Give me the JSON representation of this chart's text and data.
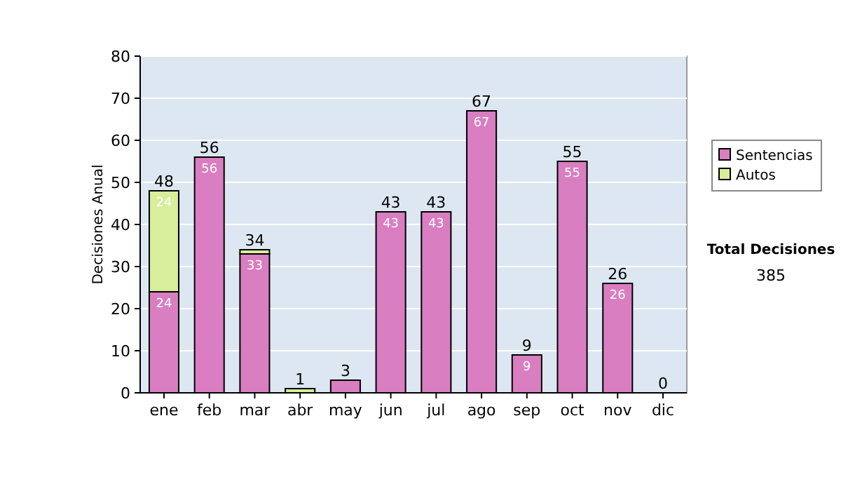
{
  "chart_data": {
    "type": "bar",
    "stacked": true,
    "ylabel": "Decisiones Anual",
    "categories": [
      "ene",
      "feb",
      "mar",
      "abr",
      "may",
      "jun",
      "jul",
      "ago",
      "sep",
      "oct",
      "nov",
      "dic"
    ],
    "series": [
      {
        "name": "Sentencias",
        "color": "#d97ec0",
        "values": [
          24,
          56,
          33,
          0,
          3,
          43,
          43,
          67,
          9,
          55,
          26,
          0
        ],
        "value_labels": [
          "24",
          "56",
          "33",
          null,
          null,
          "43",
          "43",
          "67",
          "9",
          "55",
          "26",
          null
        ]
      },
      {
        "name": "Autos",
        "color": "#d8ee9a",
        "values": [
          24,
          0,
          1,
          1,
          0,
          0,
          0,
          0,
          0,
          0,
          0,
          0
        ],
        "value_labels": [
          "24",
          null,
          null,
          null,
          null,
          null,
          null,
          null,
          null,
          null,
          null,
          null
        ]
      }
    ],
    "totals": [
      "48",
      "56",
      "34",
      "1",
      "3",
      "43",
      "43",
      "67",
      "9",
      "55",
      "26",
      "0"
    ],
    "ylim": [
      0,
      80
    ],
    "yticks": [
      0,
      10,
      20,
      30,
      40,
      50,
      60,
      70,
      80
    ],
    "grid": "y",
    "legend": "right",
    "annotations": [
      "Total Decisiones",
      "385"
    ]
  }
}
